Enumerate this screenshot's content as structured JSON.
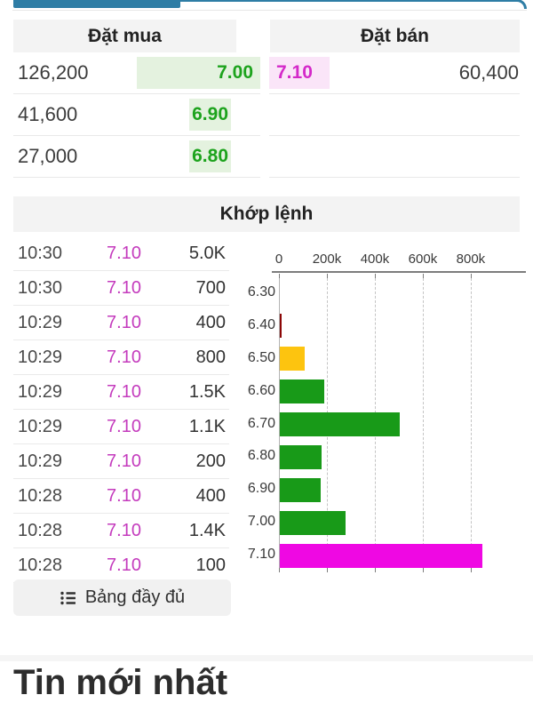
{
  "colors": {
    "accent_blue": "#2e7da5",
    "header_bg": "#f3f3f3",
    "buy_green_text": "#1da31d",
    "buy_green_bg": "#e4f2df",
    "sell_magenta_text": "#d429c9",
    "sell_pink_bg": "#fae5f8",
    "trade_price_magenta": "#c43bbd",
    "bar_green": "#189a18",
    "bar_yellow": "#fdc40f",
    "bar_dark_red": "#8c0606",
    "bar_magenta": "#ef08e3"
  },
  "order_book": {
    "buy_header": "Đặt mua",
    "sell_header": "Đặt bán",
    "rows": [
      {
        "buy_volume": "126,200",
        "buy_price": "7.00",
        "buy_highlight": "full",
        "sell_price": "7.10",
        "sell_volume": "60,400"
      },
      {
        "buy_volume": "41,600",
        "buy_price": "6.90",
        "buy_highlight": "chip",
        "sell_price": "",
        "sell_volume": ""
      },
      {
        "buy_volume": "27,000",
        "buy_price": "6.80",
        "buy_highlight": "chip",
        "sell_price": "",
        "sell_volume": ""
      }
    ]
  },
  "matched": {
    "title": "Khớp lệnh",
    "trades": [
      {
        "time": "10:30",
        "price": "7.10",
        "volume": "5.0K"
      },
      {
        "time": "10:30",
        "price": "7.10",
        "volume": "700"
      },
      {
        "time": "10:29",
        "price": "7.10",
        "volume": "400"
      },
      {
        "time": "10:29",
        "price": "7.10",
        "volume": "800"
      },
      {
        "time": "10:29",
        "price": "7.10",
        "volume": "1.5K"
      },
      {
        "time": "10:29",
        "price": "7.10",
        "volume": "1.1K"
      },
      {
        "time": "10:29",
        "price": "7.10",
        "volume": "200"
      },
      {
        "time": "10:28",
        "price": "7.10",
        "volume": "400"
      },
      {
        "time": "10:28",
        "price": "7.10",
        "volume": "1.4K"
      },
      {
        "time": "10:28",
        "price": "7.10",
        "volume": "100"
      }
    ],
    "full_board_button": "Bảng đầy đủ"
  },
  "chart_data": {
    "type": "bar",
    "orientation": "horizontal",
    "categories": [
      "6.30",
      "6.40",
      "6.50",
      "6.60",
      "6.70",
      "6.80",
      "6.90",
      "7.00",
      "7.10"
    ],
    "values": [
      0,
      5000,
      105000,
      185000,
      500000,
      175000,
      170000,
      275000,
      845000
    ],
    "bar_colors": [
      "#189a18",
      "#8c0606",
      "#fdc40f",
      "#189a18",
      "#189a18",
      "#189a18",
      "#189a18",
      "#189a18",
      "#ef08e3"
    ],
    "x_ticks": [
      "0",
      "200k",
      "400k",
      "600k",
      "800k"
    ],
    "x_tick_values": [
      0,
      200000,
      400000,
      600000,
      800000
    ],
    "xlim": [
      0,
      1030000
    ],
    "grid": "dashed-vertical",
    "axis_position": "top",
    "legend": "none"
  },
  "news": {
    "heading": "Tin mới nhất"
  }
}
